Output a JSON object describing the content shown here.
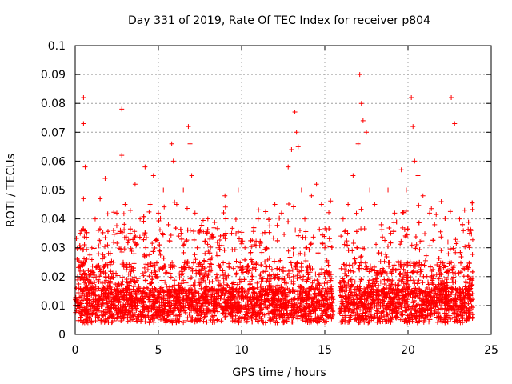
{
  "chart_data": {
    "type": "scatter",
    "title": "Day 331 of 2019, Rate Of TEC Index for receiver p804",
    "xlabel": "GPS time / hours",
    "ylabel": "ROTI / TECUs",
    "xlim": [
      0,
      25
    ],
    "ylim": [
      0,
      0.1
    ],
    "xticks": [
      0,
      5,
      10,
      15,
      20,
      25
    ],
    "xtick_labels": [
      "0",
      "5",
      "10",
      "15",
      "20",
      "25"
    ],
    "yticks": [
      0,
      0.01,
      0.02,
      0.03,
      0.04,
      0.05,
      0.06,
      0.07,
      0.08,
      0.09,
      0.1
    ],
    "ytick_labels": [
      "0",
      "0.01",
      "0.02",
      "0.03",
      "0.04",
      "0.05",
      "0.06",
      "0.07",
      "0.08",
      "0.09",
      "0.1"
    ],
    "grid": true,
    "marker": "+",
    "color": "#ff0000",
    "data_gap_hours": [
      15.5,
      15.9
    ],
    "series": [
      {
        "name": "p804 ROTI",
        "x": [
          0.3,
          0.5,
          0.5,
          0.6,
          0.5,
          0.6,
          0.8,
          1.0,
          1.2,
          1.5,
          1.8,
          2.0,
          2.3,
          2.5,
          2.8,
          2.8,
          3.0,
          3.3,
          3.6,
          3.9,
          4.2,
          4.5,
          4.7,
          5.0,
          5.3,
          5.6,
          5.8,
          5.9,
          6.1,
          6.5,
          6.8,
          6.9,
          7.0,
          7.2,
          7.5,
          7.8,
          8.2,
          8.6,
          9.0,
          9.4,
          9.8,
          10.2,
          10.6,
          11.0,
          11.5,
          12.0,
          12.4,
          12.8,
          13.0,
          13.2,
          13.3,
          13.4,
          13.6,
          13.8,
          14.2,
          14.5,
          14.8,
          15.0,
          15.2,
          16.1,
          16.4,
          16.7,
          17.0,
          17.1,
          17.2,
          17.3,
          17.5,
          17.7,
          18.0,
          18.4,
          18.8,
          19.2,
          19.6,
          19.9,
          20.2,
          20.3,
          20.4,
          20.6,
          20.9,
          21.3,
          21.6,
          22.0,
          22.4,
          22.6,
          22.8,
          23.1,
          23.4,
          23.7,
          0.2,
          1.4,
          2.6,
          3.7,
          4.8,
          6.0,
          7.3,
          8.4,
          9.6,
          10.8,
          12.1,
          13.5,
          14.7,
          16.8,
          18.2,
          19.4,
          20.7,
          21.9,
          23.2,
          23.8
        ],
        "y": [
          0.035,
          0.082,
          0.073,
          0.058,
          0.047,
          0.025,
          0.018,
          0.03,
          0.04,
          0.032,
          0.054,
          0.028,
          0.036,
          0.042,
          0.078,
          0.062,
          0.045,
          0.035,
          0.052,
          0.04,
          0.058,
          0.045,
          0.055,
          0.042,
          0.05,
          0.038,
          0.066,
          0.06,
          0.045,
          0.05,
          0.072,
          0.066,
          0.055,
          0.042,
          0.036,
          0.028,
          0.034,
          0.03,
          0.048,
          0.035,
          0.05,
          0.03,
          0.025,
          0.04,
          0.03,
          0.045,
          0.042,
          0.058,
          0.064,
          0.077,
          0.07,
          0.065,
          0.05,
          0.04,
          0.048,
          0.052,
          0.045,
          0.03,
          0.025,
          0.04,
          0.045,
          0.055,
          0.066,
          0.09,
          0.08,
          0.074,
          0.07,
          0.05,
          0.045,
          0.038,
          0.05,
          0.042,
          0.057,
          0.05,
          0.082,
          0.072,
          0.06,
          0.055,
          0.048,
          0.042,
          0.038,
          0.046,
          0.032,
          0.082,
          0.073,
          0.04,
          0.043,
          0.035,
          0.01,
          0.012,
          0.011,
          0.009,
          0.013,
          0.01,
          0.012,
          0.008,
          0.011,
          0.01,
          0.012,
          0.013,
          0.009,
          0.011,
          0.01,
          0.012,
          0.009,
          0.011,
          0.01,
          0.012
        ]
      }
    ]
  }
}
